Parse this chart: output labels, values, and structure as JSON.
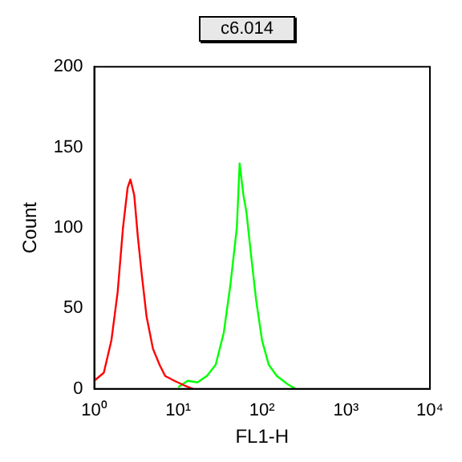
{
  "chart_data": {
    "type": "line",
    "title": "c6.014",
    "xlabel": "FL1-H",
    "ylabel": "Count",
    "log": "x",
    "grid": false,
    "legend": false,
    "marker": "none",
    "line_style": "solid",
    "xlim": [
      1,
      10000
    ],
    "xticks": [
      {
        "value": 1,
        "label": "10⁰"
      },
      {
        "value": 10,
        "label": "10¹"
      },
      {
        "value": 100,
        "label": "10²"
      },
      {
        "value": 1000,
        "label": "10³"
      },
      {
        "value": 10000,
        "label": "10⁴"
      }
    ],
    "ylim": [
      0,
      200
    ],
    "yticks": [
      0,
      50,
      100,
      150,
      200
    ],
    "series": [
      {
        "color": "#ff0000",
        "x": [
          1,
          1.3,
          1.6,
          1.9,
          2.2,
          2.5,
          2.7,
          3.0,
          3.3,
          3.7,
          4.2,
          5,
          6,
          7,
          9,
          12,
          15
        ],
        "values": [
          5,
          10,
          30,
          60,
          100,
          125,
          130,
          120,
          95,
          70,
          45,
          25,
          15,
          8,
          5,
          2,
          0
        ]
      },
      {
        "color": "#00ff00",
        "x": [
          10,
          13,
          17,
          22,
          28,
          35,
          42,
          50,
          54,
          60,
          65,
          75,
          85,
          100,
          120,
          150,
          200,
          250
        ],
        "values": [
          1,
          5,
          4,
          8,
          15,
          35,
          65,
          100,
          140,
          120,
          110,
          80,
          55,
          30,
          15,
          8,
          3,
          0
        ]
      }
    ]
  }
}
